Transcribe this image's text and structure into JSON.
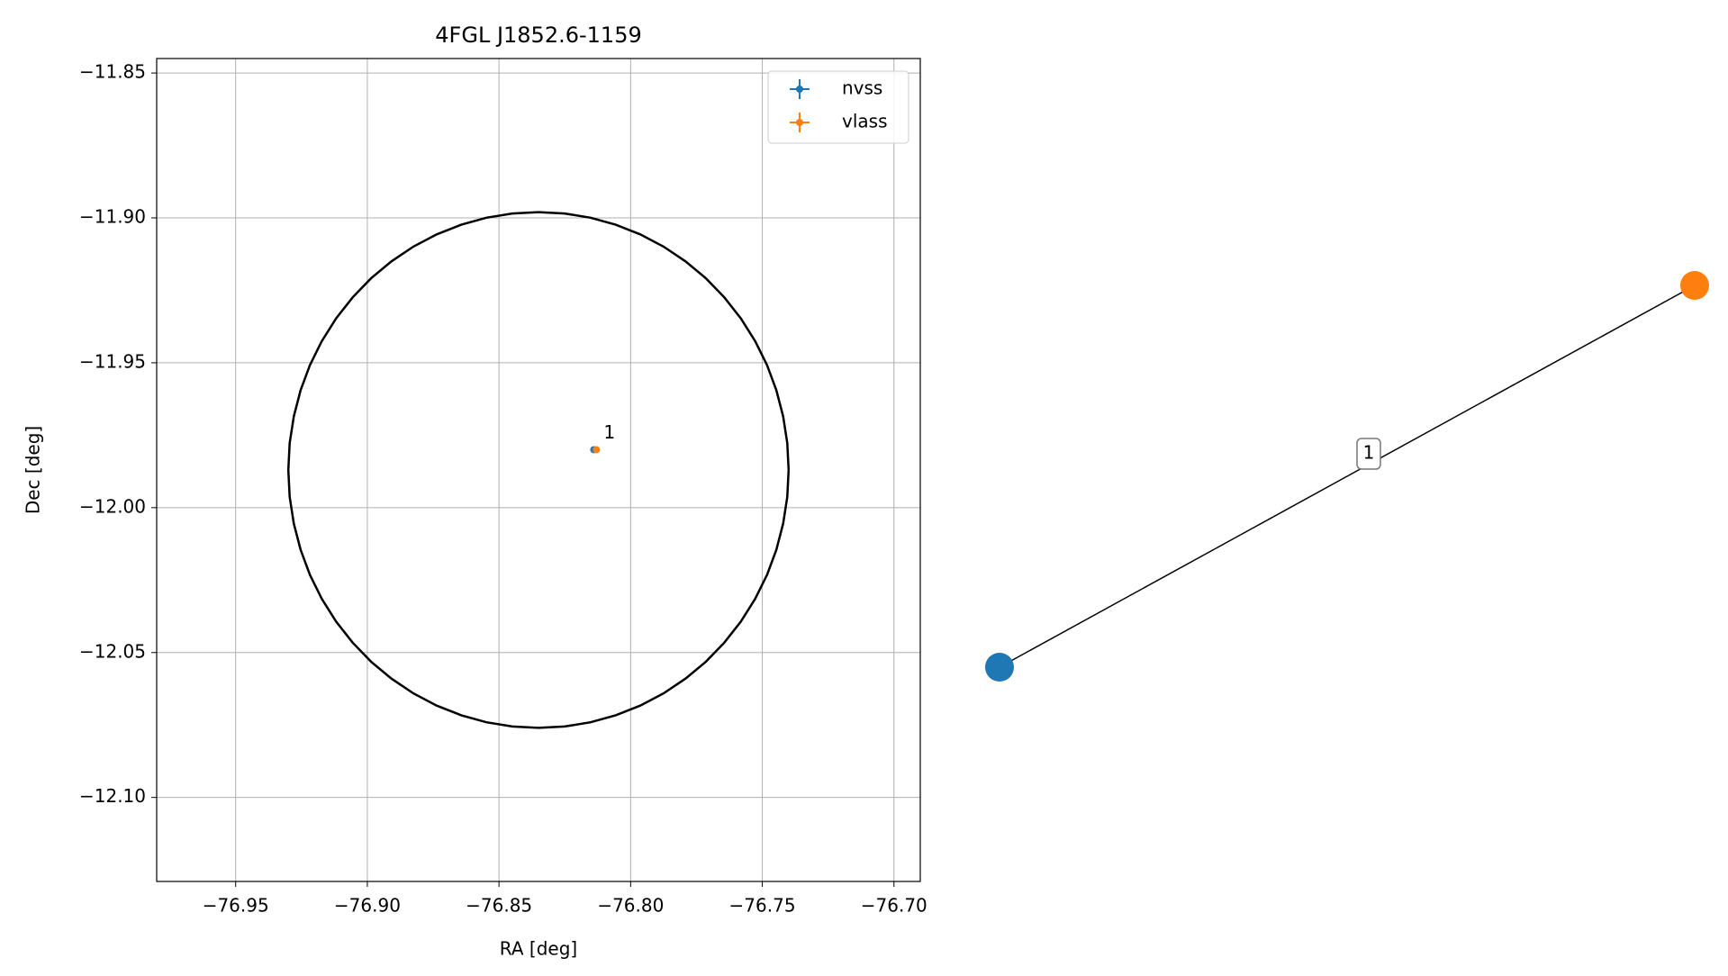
{
  "chart_data": [
    {
      "type": "scatter",
      "title": "4FGL J1852.6-1159",
      "x_label": "RA [deg]",
      "y_label": "Dec [deg]",
      "xlim": [
        -76.98,
        -76.69
      ],
      "ylim": [
        -12.129,
        -11.845
      ],
      "xticks": [
        {
          "value": -76.95,
          "label": "−76.95"
        },
        {
          "value": -76.9,
          "label": "−76.90"
        },
        {
          "value": -76.85,
          "label": "−76.85"
        },
        {
          "value": -76.8,
          "label": "−76.80"
        },
        {
          "value": -76.75,
          "label": "−76.75"
        },
        {
          "value": -76.7,
          "label": "−76.70"
        }
      ],
      "yticks": [
        {
          "value": -11.85,
          "label": "−11.85"
        },
        {
          "value": -11.9,
          "label": "−11.90"
        },
        {
          "value": -11.95,
          "label": "−11.95"
        },
        {
          "value": -12.0,
          "label": "−12.00"
        },
        {
          "value": -12.05,
          "label": "−12.05"
        },
        {
          "value": -12.1,
          "label": "−12.10"
        }
      ],
      "grid": true,
      "legend": "upper right",
      "series": [
        {
          "name": "nvss",
          "color": "#1f77b4",
          "x": [
            -76.814
          ],
          "values": [
            -11.98
          ]
        },
        {
          "name": "vlass",
          "color": "#ff7f0e",
          "x": [
            -76.813
          ],
          "values": [
            -11.98
          ]
        }
      ],
      "annotation": "1",
      "ellipse": {
        "center": [
          -76.835,
          -11.987
        ],
        "rx": 0.095,
        "ry": 0.089,
        "color": "#000000"
      }
    },
    {
      "type": "network",
      "nodes": [
        {
          "color": "#1f77b4"
        },
        {
          "color": "#ff7f0e"
        }
      ],
      "edges": [
        {
          "label": "1"
        }
      ]
    }
  ]
}
